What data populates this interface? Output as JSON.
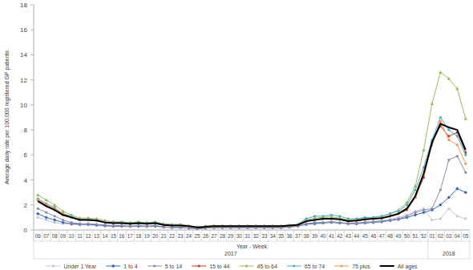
{
  "chart_data": {
    "type": "line",
    "y_label": "Average daily rate per 100,000 registered GP patients",
    "x_label": "Year - Week",
    "categories": [
      "06",
      "07",
      "08",
      "09",
      "10",
      "11",
      "12",
      "13",
      "14",
      "15",
      "16",
      "17",
      "18",
      "19",
      "20",
      "21",
      "22",
      "23",
      "24",
      "25",
      "26",
      "27",
      "28",
      "29",
      "30",
      "31",
      "32",
      "33",
      "34",
      "35",
      "36",
      "37",
      "38",
      "39",
      "40",
      "41",
      "42",
      "43",
      "44",
      "45",
      "46",
      "47",
      "48",
      "49",
      "50",
      "51",
      "52",
      "01",
      "02",
      "03",
      "04",
      "05"
    ],
    "year_groups": [
      {
        "label": "2017",
        "count": 47
      },
      {
        "label": "2018",
        "count": 5
      }
    ],
    "ylim": [
      0,
      18
    ],
    "yticks": [
      0,
      2,
      4,
      6,
      8,
      10,
      12,
      14,
      16,
      18
    ],
    "grid": false,
    "legend": "bottom",
    "series": [
      {
        "name": "Under 1 Year",
        "color": "#c3c6dc",
        "marker": "circle",
        "values": [
          1.0,
          0.8,
          0.6,
          0.5,
          0.45,
          0.4,
          0.4,
          0.35,
          0.3,
          0.3,
          0.3,
          0.25,
          0.3,
          0.25,
          0.3,
          0.2,
          0.2,
          0.2,
          0.15,
          0.1,
          0.15,
          0.15,
          0.15,
          0.15,
          0.15,
          0.15,
          0.15,
          0.15,
          0.15,
          0.15,
          0.2,
          0.3,
          0.5,
          0.55,
          0.6,
          0.65,
          0.6,
          0.55,
          0.6,
          0.65,
          0.7,
          0.75,
          0.85,
          1.0,
          1.2,
          1.5,
          1.7,
          0.8,
          0.9,
          1.7,
          1.1,
          0.9
        ]
      },
      {
        "name": "1 to 4",
        "color": "#3a68b8",
        "marker": "diamond",
        "values": [
          1.3,
          1.0,
          0.8,
          0.6,
          0.5,
          0.45,
          0.45,
          0.4,
          0.35,
          0.3,
          0.3,
          0.3,
          0.3,
          0.3,
          0.3,
          0.25,
          0.2,
          0.2,
          0.15,
          0.1,
          0.15,
          0.2,
          0.2,
          0.2,
          0.2,
          0.2,
          0.2,
          0.2,
          0.2,
          0.2,
          0.25,
          0.3,
          0.45,
          0.5,
          0.55,
          0.6,
          0.55,
          0.5,
          0.5,
          0.55,
          0.6,
          0.65,
          0.75,
          0.85,
          1.0,
          1.2,
          1.4,
          1.6,
          2.0,
          2.6,
          3.3,
          3.0
        ]
      },
      {
        "name": "5 to 14",
        "color": "#8a8cae",
        "marker": "circle",
        "values": [
          1.7,
          1.4,
          1.1,
          0.8,
          0.6,
          0.5,
          0.5,
          0.45,
          0.4,
          0.35,
          0.35,
          0.3,
          0.35,
          0.3,
          0.35,
          0.25,
          0.2,
          0.2,
          0.15,
          0.1,
          0.15,
          0.2,
          0.2,
          0.2,
          0.2,
          0.2,
          0.2,
          0.2,
          0.2,
          0.2,
          0.25,
          0.3,
          0.5,
          0.6,
          0.6,
          0.65,
          0.6,
          0.5,
          0.55,
          0.6,
          0.65,
          0.7,
          0.8,
          0.9,
          1.1,
          1.4,
          1.6,
          1.7,
          3.2,
          5.6,
          5.9,
          4.6
        ]
      },
      {
        "name": "15 to 44",
        "color": "#c0392b",
        "marker": "circle",
        "values": [
          2.4,
          2.0,
          1.6,
          1.2,
          1.0,
          0.8,
          0.8,
          0.75,
          0.6,
          0.55,
          0.55,
          0.5,
          0.55,
          0.5,
          0.55,
          0.4,
          0.35,
          0.35,
          0.3,
          0.2,
          0.25,
          0.3,
          0.3,
          0.3,
          0.3,
          0.3,
          0.3,
          0.3,
          0.3,
          0.3,
          0.35,
          0.4,
          0.7,
          0.8,
          0.9,
          0.9,
          0.85,
          0.7,
          0.75,
          0.85,
          0.9,
          0.95,
          1.1,
          1.3,
          1.6,
          2.6,
          4.2,
          7.0,
          8.3,
          7.5,
          7.8,
          6.2
        ]
      },
      {
        "name": "45 to 64",
        "color": "#9bbb59",
        "marker": "triangle",
        "values": [
          2.8,
          2.4,
          2.0,
          1.5,
          1.2,
          0.95,
          0.95,
          0.9,
          0.75,
          0.65,
          0.65,
          0.6,
          0.65,
          0.6,
          0.65,
          0.5,
          0.45,
          0.45,
          0.35,
          0.25,
          0.3,
          0.35,
          0.35,
          0.35,
          0.35,
          0.35,
          0.35,
          0.35,
          0.35,
          0.35,
          0.4,
          0.45,
          0.8,
          0.95,
          1.0,
          1.05,
          0.95,
          0.8,
          0.85,
          0.95,
          1.0,
          1.1,
          1.3,
          1.6,
          2.2,
          3.5,
          6.4,
          10.1,
          12.6,
          12.1,
          11.3,
          8.9
        ]
      },
      {
        "name": "65 to 74",
        "color": "#4bacc6",
        "marker": "circle",
        "values": [
          2.5,
          2.1,
          1.8,
          1.3,
          1.1,
          0.85,
          0.85,
          0.8,
          0.65,
          0.6,
          0.6,
          0.55,
          0.6,
          0.55,
          0.6,
          0.45,
          0.4,
          0.4,
          0.3,
          0.25,
          0.3,
          0.3,
          0.3,
          0.3,
          0.3,
          0.3,
          0.3,
          0.3,
          0.3,
          0.3,
          0.35,
          0.45,
          0.9,
          1.1,
          1.1,
          1.2,
          1.1,
          0.9,
          0.9,
          1.0,
          1.0,
          1.1,
          1.3,
          1.5,
          2.0,
          3.2,
          5.0,
          7.2,
          9.0,
          8.0,
          7.5,
          6.0
        ]
      },
      {
        "name": "75 plus",
        "color": "#f79646",
        "marker": "circle",
        "values": [
          2.4,
          2.0,
          1.7,
          1.3,
          1.0,
          0.8,
          0.8,
          0.75,
          0.6,
          0.55,
          0.55,
          0.5,
          0.55,
          0.5,
          0.55,
          0.4,
          0.35,
          0.35,
          0.3,
          0.2,
          0.25,
          0.3,
          0.3,
          0.3,
          0.3,
          0.3,
          0.3,
          0.3,
          0.3,
          0.3,
          0.35,
          0.4,
          0.7,
          0.8,
          0.85,
          0.9,
          0.85,
          0.7,
          0.75,
          0.8,
          0.9,
          0.95,
          1.1,
          1.3,
          1.7,
          2.6,
          4.4,
          6.8,
          8.7,
          7.2,
          6.8,
          5.3
        ]
      },
      {
        "name": "All ages",
        "color": "#000000",
        "marker": "none",
        "values": [
          2.3,
          1.9,
          1.6,
          1.2,
          1.0,
          0.8,
          0.8,
          0.75,
          0.6,
          0.55,
          0.55,
          0.5,
          0.55,
          0.5,
          0.55,
          0.4,
          0.35,
          0.35,
          0.3,
          0.2,
          0.25,
          0.3,
          0.3,
          0.3,
          0.3,
          0.3,
          0.3,
          0.3,
          0.3,
          0.3,
          0.35,
          0.4,
          0.7,
          0.8,
          0.9,
          0.9,
          0.85,
          0.7,
          0.75,
          0.85,
          0.9,
          0.95,
          1.1,
          1.3,
          1.7,
          2.7,
          4.5,
          7.0,
          8.5,
          8.2,
          8.0,
          6.4
        ]
      }
    ]
  }
}
